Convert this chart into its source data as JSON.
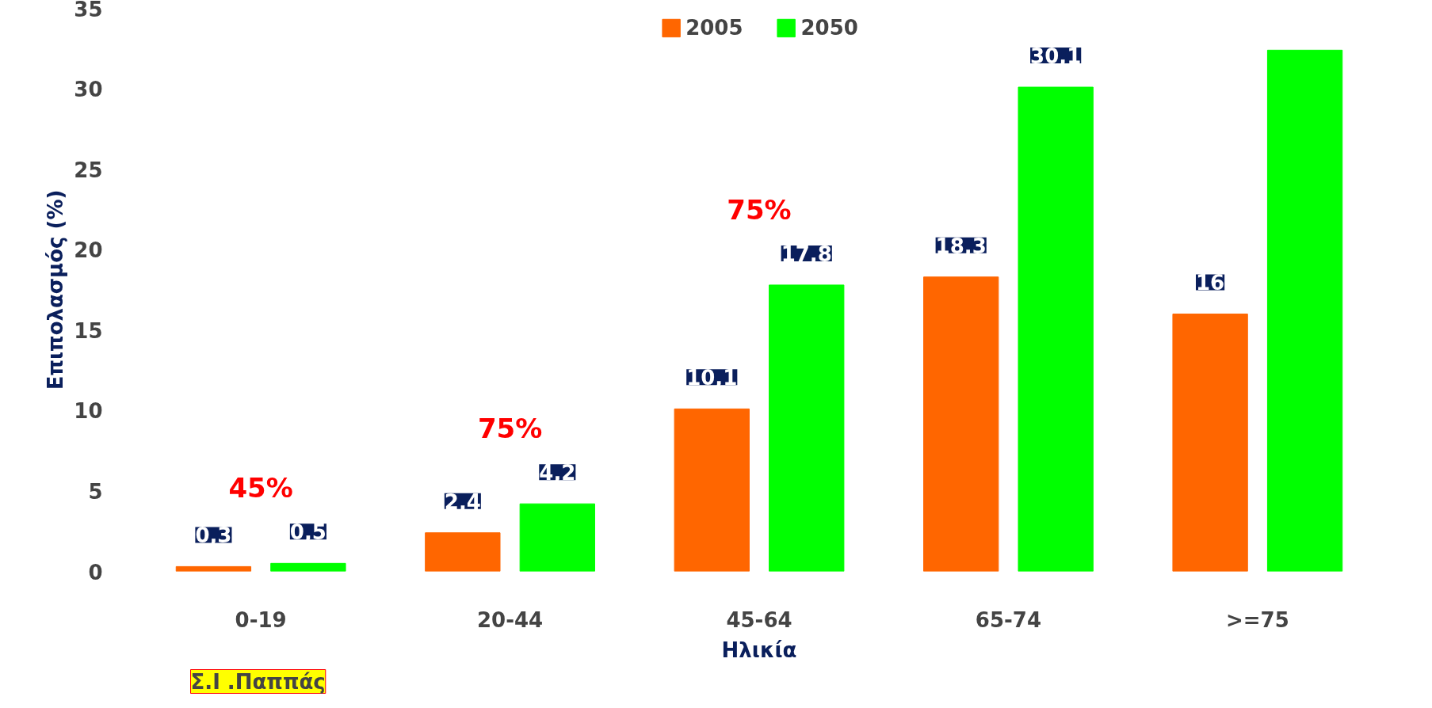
{
  "chart_data": {
    "type": "bar",
    "ylabel": "Επιπολασμός (%)",
    "xlabel": "Ηλικία",
    "categories": [
      "0-19",
      "20-44",
      "45-64",
      "65-74",
      ">=75"
    ],
    "series": [
      {
        "name": "2005",
        "color": "#ff6600",
        "values": [
          0.3,
          2.4,
          10.1,
          18.3,
          16
        ],
        "value_labels": [
          "0,3",
          "2,4",
          "10,1",
          "18,3",
          "16"
        ]
      },
      {
        "name": "2050",
        "color": "#00ff00",
        "values": [
          0.5,
          4.2,
          17.8,
          30.1,
          32.4
        ],
        "value_labels": [
          "0,5",
          "4,2",
          "17,8",
          "30,1",
          null
        ]
      }
    ],
    "ylim": [
      0,
      35
    ],
    "yticks": [
      0,
      5,
      10,
      15,
      20,
      25,
      30,
      35
    ],
    "grid": false,
    "legend": "top",
    "annotations": [
      "45%",
      "75%",
      "75%",
      "Σ.Ι .Παππάς"
    ]
  }
}
